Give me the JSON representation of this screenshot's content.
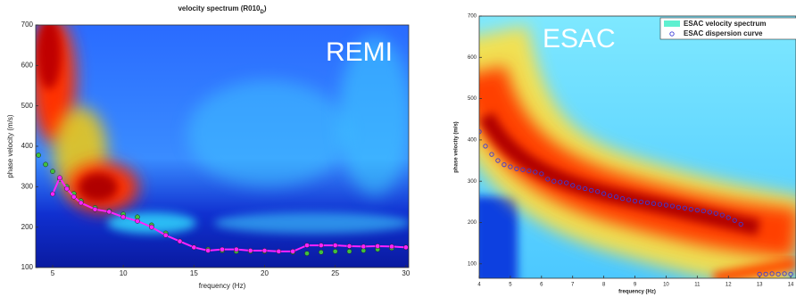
{
  "chart_data": [
    {
      "type": "line",
      "title": "velocity spectrum (R010",
      "title_subscript": "D",
      "title_end": ")",
      "annotation": "REMI",
      "xlabel": "frequency (Hz)",
      "ylabel": "phase velocity (m/s)",
      "xlim": [
        3.8,
        30.2
      ],
      "ylim": [
        100,
        700
      ],
      "xticks": [
        5,
        10,
        15,
        20,
        25,
        30
      ],
      "yticks": [
        100,
        200,
        300,
        400,
        500,
        600,
        700
      ],
      "series": [
        {
          "color": "#3fbf3f",
          "line": false,
          "marker": "filled",
          "x": [
            4,
            4.5,
            5,
            5.5,
            6,
            6.5,
            7,
            8,
            9,
            10,
            11,
            12,
            13,
            14,
            15,
            16,
            17,
            18,
            19,
            20,
            21,
            22,
            23,
            24,
            25,
            26,
            27,
            28,
            29,
            30
          ],
          "values": [
            378,
            355,
            338,
            318,
            300,
            283,
            265,
            248,
            240,
            232,
            225,
            205,
            185,
            165,
            150,
            145,
            142,
            140,
            140,
            140,
            140,
            138,
            135,
            138,
            140,
            140,
            142,
            145,
            148,
            150
          ]
        },
        {
          "color": "#ff22ff",
          "line": true,
          "marker": "filled",
          "x": [
            5,
            5.5,
            6,
            6.5,
            7,
            8,
            9,
            10,
            11,
            12,
            13,
            14,
            15,
            16,
            17,
            18,
            19,
            20,
            21,
            22,
            23,
            24,
            25,
            26,
            27,
            28,
            29,
            30
          ],
          "values": [
            282,
            322,
            295,
            275,
            260,
            244,
            238,
            225,
            215,
            200,
            180,
            165,
            150,
            142,
            145,
            145,
            142,
            142,
            140,
            140,
            155,
            155,
            155,
            153,
            152,
            153,
            152,
            150
          ]
        }
      ]
    },
    {
      "type": "scatter",
      "annotation": "ESAC",
      "xlabel": "frequency (Hz)",
      "ylabel": "phase velocity (m/s)",
      "xlim": [
        4,
        14.17
      ],
      "ylim": [
        65,
        700
      ],
      "xticks": [
        4,
        5,
        6,
        7,
        8,
        9,
        10,
        11,
        12,
        13,
        14
      ],
      "yticks": [
        100,
        200,
        300,
        400,
        500,
        600,
        700
      ],
      "legend": "upper right",
      "heatmap_label": "ESAC velocity spectrum",
      "heatmap_color": "#5ff0d0",
      "series": [
        {
          "name": "ESAC dispersion curve",
          "color": "#3b3bd6",
          "line": false,
          "marker": "open",
          "x": [
            4,
            4.2,
            4.4,
            4.6,
            4.8,
            5,
            5.2,
            5.4,
            5.6,
            5.8,
            6,
            6.2,
            6.4,
            6.6,
            6.8,
            7,
            7.2,
            7.4,
            7.6,
            7.8,
            8,
            8.2,
            8.4,
            8.6,
            8.8,
            9,
            9.2,
            9.4,
            9.6,
            9.8,
            10,
            10.2,
            10.4,
            10.6,
            10.8,
            11,
            11.2,
            11.4,
            11.6,
            11.8,
            12,
            12.2,
            12.4,
            13,
            13.2,
            13.4,
            13.6,
            13.8,
            14
          ],
          "values": [
            420,
            385,
            365,
            350,
            340,
            335,
            330,
            328,
            325,
            322,
            318,
            305,
            300,
            298,
            296,
            290,
            285,
            282,
            278,
            275,
            270,
            265,
            262,
            258,
            255,
            252,
            250,
            248,
            246,
            244,
            242,
            240,
            237,
            235,
            232,
            230,
            228,
            225,
            222,
            218,
            212,
            205,
            196,
            75,
            75,
            76,
            75,
            76,
            75
          ]
        }
      ]
    }
  ]
}
